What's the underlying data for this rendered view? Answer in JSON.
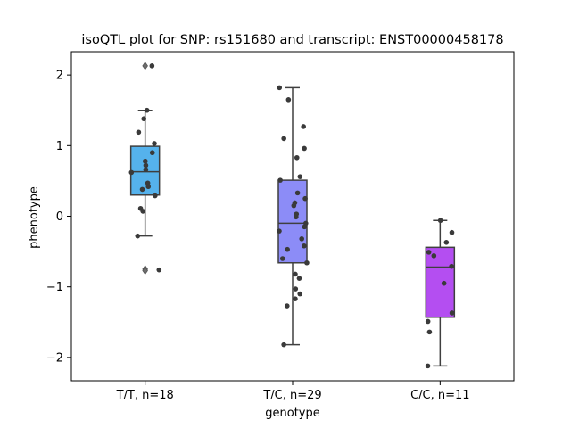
{
  "chart_data": {
    "type": "box",
    "title": "isoQTL plot for SNP: rs151680 and transcript: ENST00000458178",
    "xlabel": "genotype",
    "ylabel": "phenotype",
    "ylim": [
      -2.33,
      2.33
    ],
    "yticks": [
      -2,
      -1,
      0,
      1,
      2
    ],
    "ytick_labels": [
      "−2",
      "−1",
      "0",
      "1",
      "2"
    ],
    "grid": false,
    "categories": [
      "T/T, n=18",
      "T/C, n=29",
      "C/C, n=11"
    ],
    "boxes": [
      {
        "category": "T/T, n=18",
        "color": "#55b2ec",
        "q1": 0.3,
        "median": 0.63,
        "q3": 0.99,
        "whisker_low": -0.28,
        "whisker_high": 1.5,
        "outliers": [
          2.13,
          -0.75,
          -0.77
        ],
        "points": [
          2.13,
          1.5,
          1.38,
          1.19,
          1.03,
          0.9,
          0.78,
          0.72,
          0.66,
          0.62,
          0.47,
          0.42,
          0.38,
          0.29,
          0.11,
          0.07,
          -0.28,
          -0.76
        ]
      },
      {
        "category": "T/C, n=29",
        "color": "#8c8cf7",
        "q1": -0.66,
        "median": -0.1,
        "q3": 0.51,
        "whisker_low": -1.82,
        "whisker_high": 1.82,
        "outliers": [],
        "points": [
          1.82,
          1.65,
          1.27,
          1.1,
          0.96,
          0.83,
          0.56,
          0.51,
          0.33,
          0.25,
          0.19,
          0.15,
          0.03,
          -0.01,
          -0.1,
          -0.15,
          -0.21,
          -0.32,
          -0.42,
          -0.47,
          -0.6,
          -0.66,
          -0.82,
          -0.88,
          -1.03,
          -1.1,
          -1.17,
          -1.27,
          -1.82
        ]
      },
      {
        "category": "C/C, n=11",
        "color": "#b44ef1",
        "q1": -1.43,
        "median": -0.72,
        "q3": -0.44,
        "whisker_low": -2.12,
        "whisker_high": -0.06,
        "outliers": [],
        "points": [
          -0.06,
          -0.23,
          -0.37,
          -0.51,
          -0.56,
          -0.71,
          -0.95,
          -1.37,
          -1.49,
          -1.64,
          -2.12
        ]
      }
    ]
  }
}
